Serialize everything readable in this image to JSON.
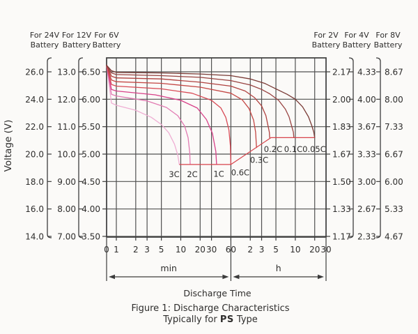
{
  "captions": {
    "discharge_time": "Discharge Time",
    "figure_line1": "Figure 1: Discharge Characteristics",
    "typically_prefix": "Typically for ",
    "type_bold": "PS",
    "typically_suffix": " Type"
  },
  "chart_data": {
    "type": "line",
    "title": "Figure 1: Discharge Characteristics Typically for PS Type",
    "x_axis": {
      "label": "Discharge Time",
      "scale": "log",
      "zero_label": "0",
      "units": [
        {
          "name": "min",
          "ticks": [
            1,
            2,
            3,
            5,
            10,
            20,
            30,
            60
          ]
        },
        {
          "name": "h",
          "ticks": [
            2,
            3,
            5,
            10,
            20,
            30
          ]
        }
      ]
    },
    "y_axis": {
      "label": "Voltage (V)",
      "plot_scale_range_6v": [
        3.5,
        6.5
      ],
      "scales": [
        {
          "title": [
            "For 24V",
            "Battery"
          ],
          "side": "left",
          "ticks": [
            "26.0",
            "24.0",
            "22.0",
            "20.0",
            "18.0",
            "16.0",
            "14.0"
          ]
        },
        {
          "title": [
            "For 12V",
            "Battery"
          ],
          "side": "left",
          "ticks": [
            "13.0",
            "12.0",
            "11.0",
            "10.0",
            "9.00",
            "8.00",
            "7.00"
          ]
        },
        {
          "title": [
            "For 6V",
            "Battery"
          ],
          "side": "left",
          "ticks": [
            "6.50",
            "6.00",
            "5.50",
            "5.00",
            "4.50",
            "4.00",
            "3.50"
          ]
        },
        {
          "title": [
            "For 2V",
            "Battery"
          ],
          "side": "right",
          "ticks": [
            "2.17",
            "2.00",
            "1.83",
            "1.67",
            "1.50",
            "1.33",
            "1.17"
          ]
        },
        {
          "title": [
            "For 4V",
            "Battery"
          ],
          "side": "right",
          "ticks": [
            "4.33",
            "4.00",
            "3.67",
            "3.33",
            "3.00",
            "2.67",
            "2.33"
          ]
        },
        {
          "title": [
            "For 8V",
            "Battery"
          ],
          "side": "right",
          "ticks": [
            "8.67",
            "8.00",
            "7.33",
            "6.67",
            "6.00",
            "5.33",
            "4.67"
          ]
        }
      ]
    },
    "series_note": "points are [time_in_minutes, voltage_on_6V_scale]",
    "series": [
      {
        "name": "0.05C",
        "color": "#7a3b36",
        "points": [
          [
            0,
            6.62
          ],
          [
            0.5,
            6.52
          ],
          [
            1,
            6.49
          ],
          [
            5,
            6.48
          ],
          [
            20,
            6.46
          ],
          [
            60,
            6.43
          ],
          [
            120,
            6.37
          ],
          [
            200,
            6.29
          ],
          [
            300,
            6.19
          ],
          [
            450,
            6.09
          ],
          [
            600,
            6.0
          ],
          [
            780,
            5.86
          ],
          [
            960,
            5.68
          ],
          [
            1080,
            5.52
          ],
          [
            1160,
            5.4
          ],
          [
            1200,
            5.3
          ]
        ]
      },
      {
        "name": "0.1C",
        "color": "#984341",
        "points": [
          [
            0,
            6.62
          ],
          [
            0.5,
            6.48
          ],
          [
            1,
            6.45
          ],
          [
            5,
            6.43
          ],
          [
            20,
            6.4
          ],
          [
            60,
            6.34
          ],
          [
            120,
            6.26
          ],
          [
            180,
            6.18
          ],
          [
            240,
            6.1
          ],
          [
            330,
            5.98
          ],
          [
            420,
            5.82
          ],
          [
            480,
            5.68
          ],
          [
            530,
            5.5
          ],
          [
            560,
            5.4
          ],
          [
            570,
            5.3
          ]
        ]
      },
      {
        "name": "0.2C",
        "color": "#b0413f",
        "points": [
          [
            0,
            6.62
          ],
          [
            0.5,
            6.42
          ],
          [
            1,
            6.39
          ],
          [
            5,
            6.37
          ],
          [
            20,
            6.31
          ],
          [
            60,
            6.24
          ],
          [
            100,
            6.15
          ],
          [
            140,
            6.03
          ],
          [
            180,
            5.88
          ],
          [
            210,
            5.7
          ],
          [
            228,
            5.5
          ],
          [
            237,
            5.4
          ],
          [
            240,
            5.3
          ]
        ]
      },
      {
        "name": "0.3C",
        "color": "#c44744",
        "points": [
          [
            0,
            6.62
          ],
          [
            0.5,
            6.35
          ],
          [
            1,
            6.32
          ],
          [
            5,
            6.29
          ],
          [
            20,
            6.22
          ],
          [
            60,
            6.11
          ],
          [
            90,
            5.99
          ],
          [
            115,
            5.83
          ],
          [
            135,
            5.62
          ],
          [
            145,
            5.4
          ],
          [
            150,
            5.12
          ]
        ]
      },
      {
        "name": "0.6C",
        "color": "#d84a55",
        "points": [
          [
            0,
            6.62
          ],
          [
            0.5,
            6.27
          ],
          [
            1,
            6.24
          ],
          [
            5,
            6.19
          ],
          [
            15,
            6.11
          ],
          [
            30,
            5.98
          ],
          [
            42,
            5.84
          ],
          [
            50,
            5.67
          ],
          [
            56,
            5.44
          ],
          [
            59,
            5.15
          ],
          [
            60,
            4.81
          ]
        ]
      },
      {
        "name": "1C",
        "color": "#d84189",
        "points": [
          [
            0,
            6.62
          ],
          [
            0.5,
            6.18
          ],
          [
            1,
            6.15
          ],
          [
            4,
            6.08
          ],
          [
            10,
            5.98
          ],
          [
            18,
            5.84
          ],
          [
            25,
            5.63
          ],
          [
            31,
            5.38
          ],
          [
            35,
            5.05
          ],
          [
            36,
            4.81
          ]
        ]
      },
      {
        "name": "2C",
        "color": "#e27ab2",
        "points": [
          [
            0,
            6.62
          ],
          [
            0.5,
            6.09
          ],
          [
            1,
            6.06
          ],
          [
            3,
            5.97
          ],
          [
            6,
            5.85
          ],
          [
            9,
            5.7
          ],
          [
            11.5,
            5.51
          ],
          [
            13,
            5.3
          ],
          [
            13.8,
            5.02
          ],
          [
            14,
            4.81
          ]
        ]
      },
      {
        "name": "3C",
        "color": "#efaed3",
        "points": [
          [
            0,
            6.62
          ],
          [
            0.5,
            5.93
          ],
          [
            1,
            5.89
          ],
          [
            2,
            5.8
          ],
          [
            3.5,
            5.67
          ],
          [
            5,
            5.54
          ],
          [
            6.5,
            5.39
          ],
          [
            8,
            5.18
          ],
          [
            9,
            4.98
          ],
          [
            9.5,
            4.81
          ]
        ]
      }
    ],
    "cutoff_line": {
      "color": "#d8434b",
      "points": [
        [
          9.5,
          4.81
        ],
        [
          60,
          4.81
        ],
        [
          252,
          5.3
        ],
        [
          1200,
          5.3
        ]
      ]
    },
    "series_labels": [
      {
        "text": "3C",
        "t": 7.9,
        "v": 4.58
      },
      {
        "text": "2C",
        "t": 15.1,
        "v": 4.58
      },
      {
        "text": "1C",
        "t": 38.9,
        "v": 4.59
      },
      {
        "text": "0.6C",
        "t": 84,
        "v": 4.61
      },
      {
        "text": "0.3C",
        "t": 165,
        "v": 4.84
      },
      {
        "text": "0.2C",
        "t": 271,
        "v": 5.04
      },
      {
        "text": "0.1C",
        "t": 558,
        "v": 5.04
      },
      {
        "text": "0.05C",
        "t": 1178,
        "v": 5.04
      }
    ],
    "grid": true,
    "legend_position": "none",
    "colors": {
      "grid": "#505050",
      "axis": "#3c3c3c",
      "text": "#2e2d2c"
    }
  }
}
